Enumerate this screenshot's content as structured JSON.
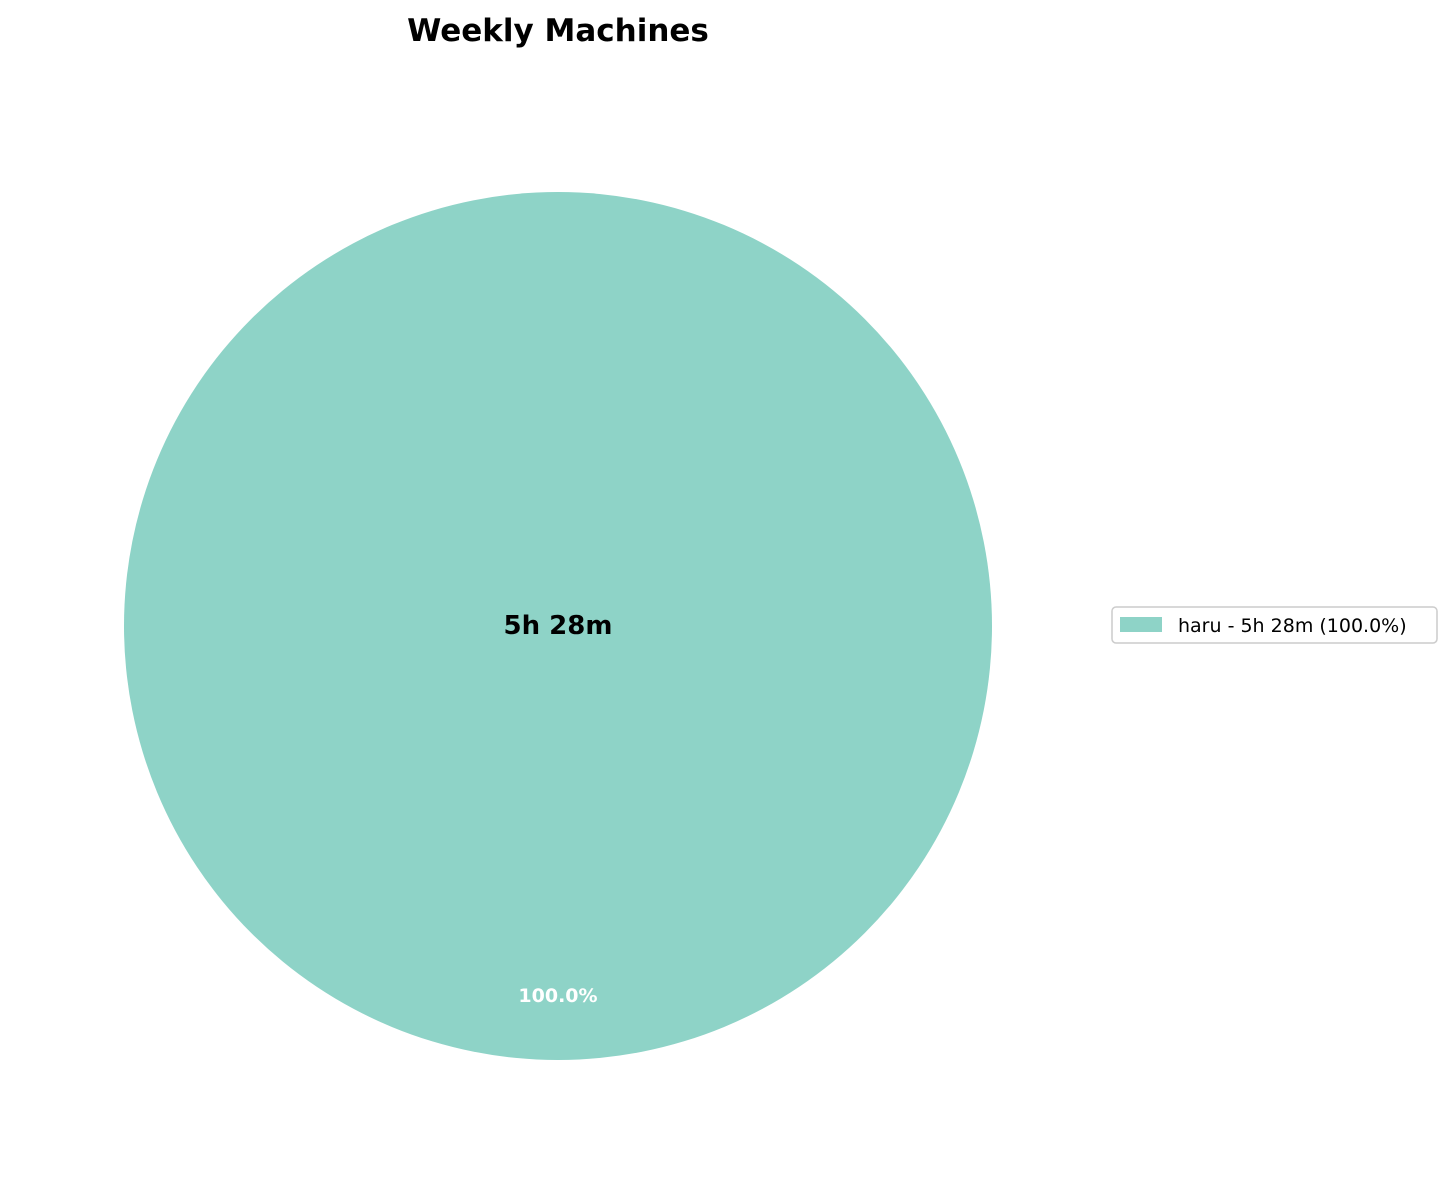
{
  "chart_data": {
    "type": "pie",
    "title": "Weekly Machines",
    "center_label": "5h 28m",
    "slices": [
      {
        "label": "haru",
        "value_minutes": 328,
        "percent": 100.0,
        "percent_label": "100.0%",
        "legend_label": "haru - 5h 28m (100.0%)",
        "color": "#8ed3c7"
      }
    ],
    "legend_position": "right"
  }
}
